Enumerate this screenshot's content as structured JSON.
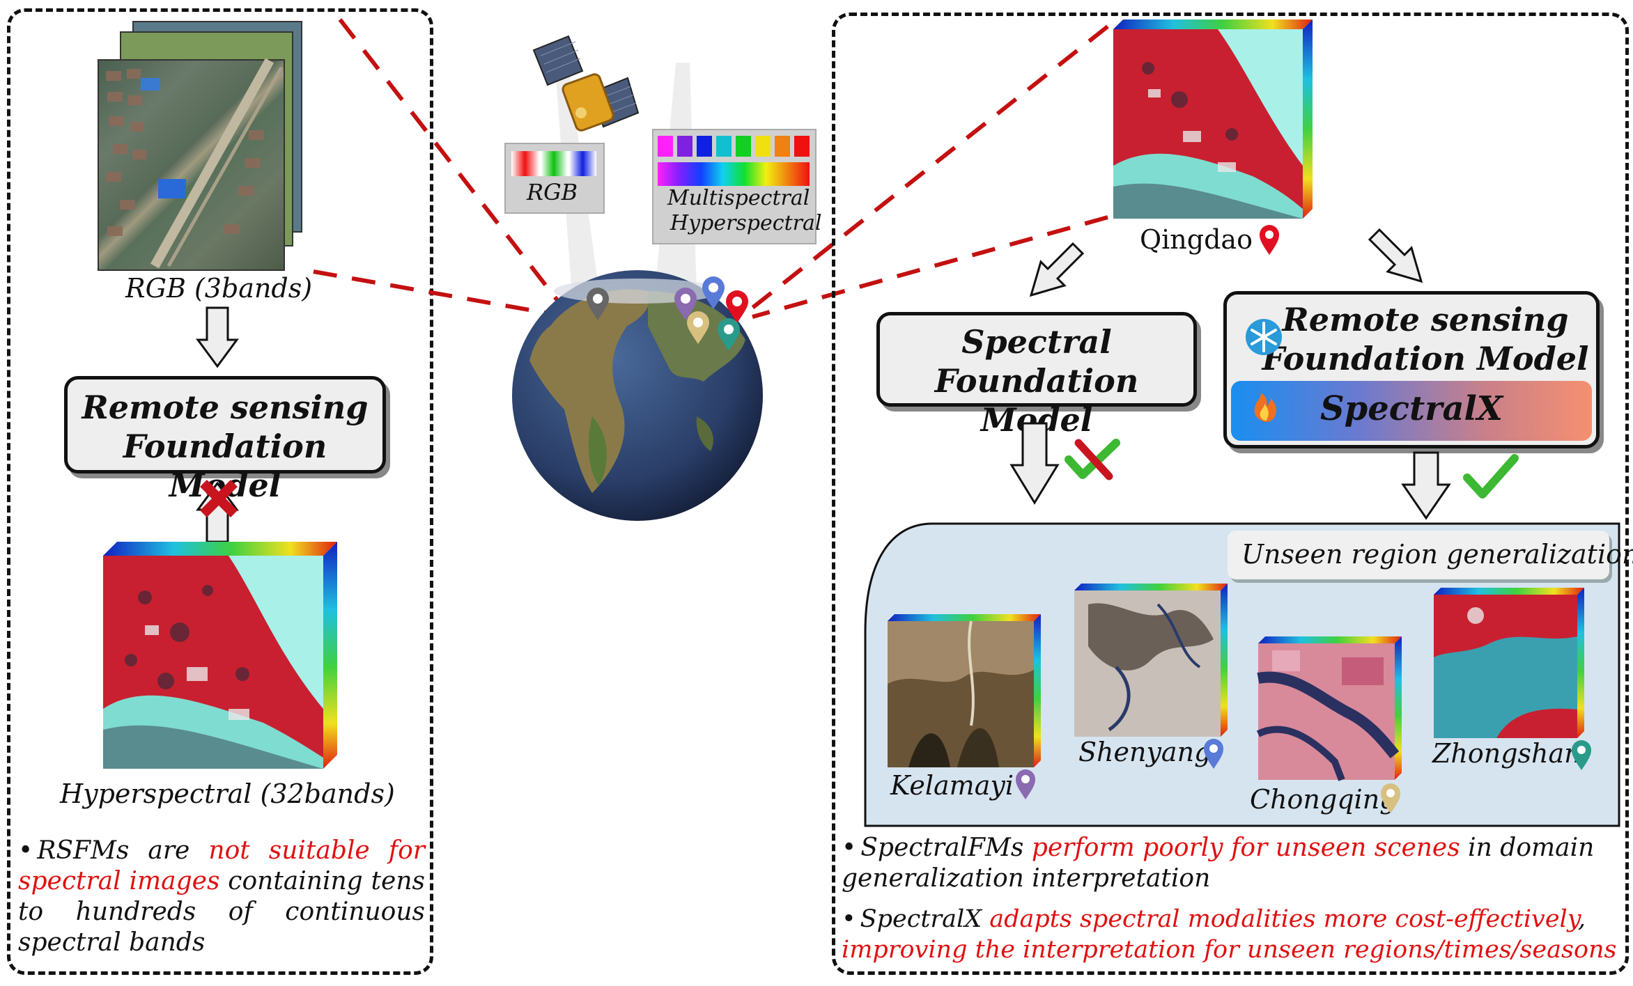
{
  "left_panel": {
    "rgb_caption": "RGB (3bands)",
    "model_title_line1": "Remote sensing",
    "model_title_line2": "Foundation Model",
    "hyper_caption": "Hyperspectral (32bands)",
    "bullet": {
      "part1": "RSFMs are ",
      "part2_red": "not suitable for spectral images",
      "part3": " containing tens to hundreds of continuous spectral bands"
    }
  },
  "center": {
    "rgb_label": "RGB",
    "multi_label_line1": "Multispectral",
    "multi_label_line2": "Hyperspectral"
  },
  "right_panel": {
    "top_caption": "Qingdao",
    "spectral_model_line1": "Spectral",
    "spectral_model_line2": "Foundation Model",
    "rs_model_line1": "Remote sensing",
    "rs_model_line2": "Foundation Model",
    "spectralx_label": "SpectralX",
    "generalization_title": "Unseen region generalization",
    "regions": [
      "Kelamayi",
      "Shenyang",
      "Chongqing",
      "Zhongshan"
    ],
    "bullet1": {
      "part1": "SpectralFMs ",
      "part2_red": "perform poorly for unseen scenes",
      "part3": " in domain generalization interpretation"
    },
    "bullet2": {
      "part1": "SpectralX ",
      "part2_red": "adapts spectral modalities more cost-effectively",
      "part3": ", ",
      "part4_red": "improving the interpretation for unseen regions/times/seasons"
    }
  },
  "colors": {
    "accent_red": "#e01010",
    "dashed_line": "#c41010",
    "check_green": "#3cb832",
    "cross_red": "#c8141e",
    "gen_box_bg": "#d6e4f0"
  },
  "icons": [
    "satellite-icon",
    "globe-icon",
    "location-pin-icon",
    "snowflake-icon",
    "fire-icon",
    "check-icon",
    "cross-icon",
    "arrow-down-icon",
    "arrow-up-icon"
  ]
}
